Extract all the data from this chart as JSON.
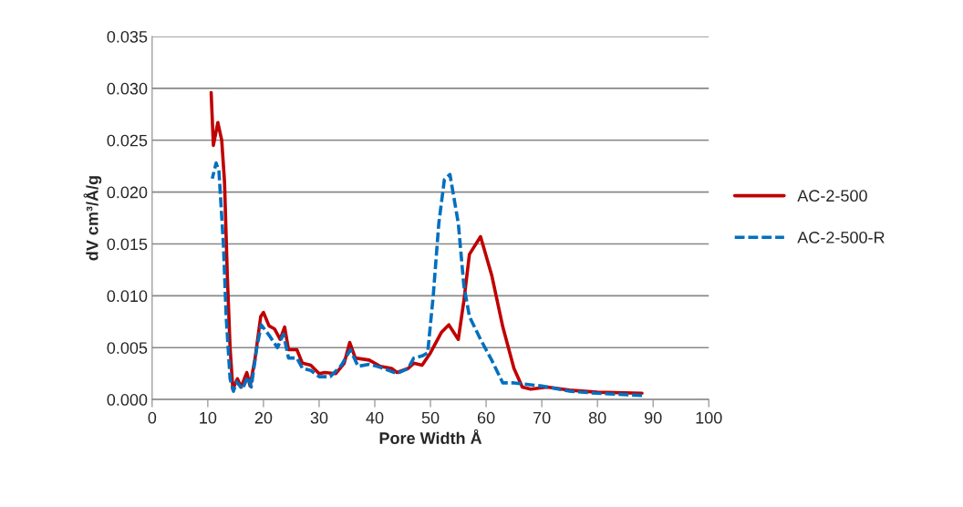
{
  "chart_data": {
    "type": "line",
    "xlabel": "Pore Width Å",
    "ylabel": "dV cm³/Å/g",
    "xlim": [
      0,
      100
    ],
    "xticks": [
      0,
      10,
      20,
      30,
      40,
      50,
      60,
      70,
      80,
      90,
      100
    ],
    "ylim": [
      0,
      0.035
    ],
    "yticks": [
      {
        "value": 0,
        "label": "0.000"
      },
      {
        "value": 0.005,
        "label": "0.005"
      },
      {
        "value": 0.01,
        "label": "0.010"
      },
      {
        "value": 0.015,
        "label": "0.015"
      },
      {
        "value": 0.02,
        "label": "0.020"
      },
      {
        "value": 0.025,
        "label": "0.025"
      },
      {
        "value": 0.03,
        "label": "0.030"
      },
      {
        "value": 0.035,
        "label": "0.035"
      }
    ],
    "grid": "y",
    "legend": "right",
    "marker": "none",
    "series": [
      {
        "name": "AC-2-500",
        "color": "#c00000",
        "line_style": "solid",
        "x": [
          10.6,
          11.0,
          11.8,
          12.5,
          13.0,
          13.5,
          14.0,
          14.5,
          15.3,
          16.0,
          17.0,
          17.6,
          18.5,
          19.5,
          20.0,
          21,
          22,
          23,
          23.8,
          24.5,
          26,
          27,
          28.5,
          30,
          31,
          33,
          34.5,
          35.5,
          36.5,
          39,
          41,
          43,
          44,
          46,
          47,
          48.5,
          50,
          52,
          53.3,
          55,
          56,
          57,
          59,
          61,
          63,
          65,
          66.5,
          68,
          71,
          75,
          80,
          88
        ],
        "values": [
          0.0296,
          0.0245,
          0.0267,
          0.025,
          0.021,
          0.012,
          0.005,
          0.001,
          0.002,
          0.0012,
          0.0026,
          0.0013,
          0.004,
          0.008,
          0.0084,
          0.0071,
          0.0068,
          0.0058,
          0.007,
          0.0048,
          0.0048,
          0.0035,
          0.0033,
          0.0025,
          0.0026,
          0.0025,
          0.0035,
          0.0055,
          0.004,
          0.0038,
          0.0032,
          0.003,
          0.0026,
          0.003,
          0.0035,
          0.0033,
          0.0045,
          0.0065,
          0.0072,
          0.0058,
          0.0095,
          0.014,
          0.0157,
          0.012,
          0.007,
          0.003,
          0.0012,
          0.001,
          0.0012,
          0.0009,
          0.0007,
          0.0006
        ]
      },
      {
        "name": "AC-2-500-R",
        "color": "#0070c0",
        "line_style": "dashed",
        "x": [
          10.8,
          11.5,
          12.0,
          12.8,
          13.3,
          14.0,
          14.6,
          15.2,
          16.2,
          17.2,
          17.8,
          18.8,
          19.6,
          21,
          22.5,
          23.6,
          24.5,
          26,
          27,
          28.5,
          30,
          32,
          34,
          35.6,
          37,
          39,
          41,
          44,
          46,
          47,
          48.5,
          49.5,
          50.5,
          51.5,
          52.5,
          53.5,
          55,
          56,
          57,
          59,
          61,
          63,
          65,
          70,
          75,
          80,
          88
        ],
        "values": [
          0.0213,
          0.0228,
          0.022,
          0.015,
          0.008,
          0.002,
          0.0008,
          0.0017,
          0.001,
          0.0022,
          0.0012,
          0.005,
          0.0072,
          0.0062,
          0.005,
          0.0063,
          0.004,
          0.004,
          0.003,
          0.0028,
          0.0022,
          0.0022,
          0.0033,
          0.0048,
          0.0032,
          0.0034,
          0.0031,
          0.0025,
          0.003,
          0.004,
          0.0042,
          0.0045,
          0.01,
          0.017,
          0.0212,
          0.0217,
          0.017,
          0.011,
          0.008,
          0.0058,
          0.0038,
          0.0016,
          0.0016,
          0.0013,
          0.0008,
          0.0006,
          0.0004
        ]
      }
    ]
  }
}
